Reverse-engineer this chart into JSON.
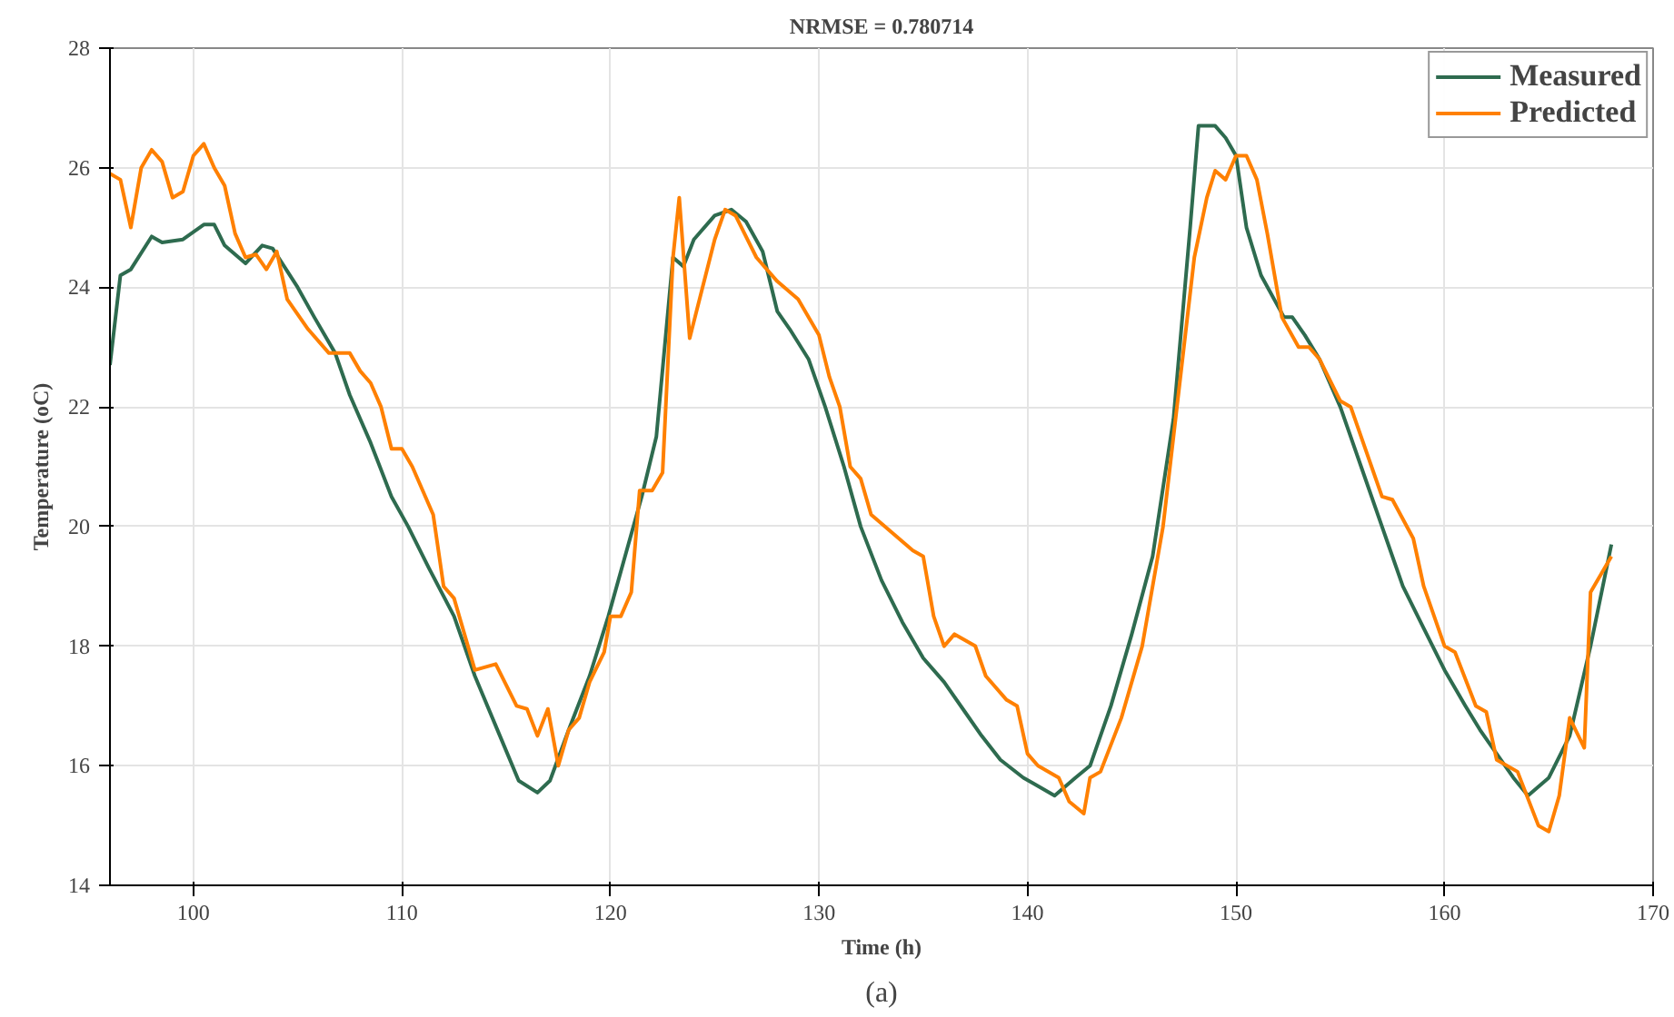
{
  "chart_data": {
    "type": "line",
    "title": "NRMSE = 0.780714",
    "xlabel": "Time (h)",
    "ylabel": "Temperature (oC)",
    "annotations": [
      "(a)"
    ],
    "xlim": [
      96,
      170
    ],
    "xticks": [
      100,
      110,
      120,
      130,
      140,
      150,
      160,
      170
    ],
    "ylim": [
      14,
      28
    ],
    "yticks": [
      14,
      16,
      18,
      20,
      22,
      24,
      26,
      28
    ],
    "grid": true,
    "legend": "top right",
    "marker": "none",
    "line_style": "solid",
    "series": [
      {
        "name": "Measured",
        "color": "#2e6b4f",
        "x": [
          96,
          96.5,
          97,
          98,
          98.5,
          99.5,
          100.5,
          101,
          101.5,
          102.5,
          103.3,
          103.8,
          105,
          105.8,
          106.8,
          107.5,
          108.5,
          109.5,
          110.3,
          111.3,
          112.5,
          113.5,
          114.7,
          115.6,
          116.5,
          117.1,
          118,
          119,
          119.9,
          120.7,
          121.5,
          122.2,
          123,
          123.5,
          124,
          125,
          125.8,
          126.5,
          127.3,
          128,
          128.6,
          129.5,
          130.3,
          131.2,
          132,
          133,
          134,
          135,
          136,
          137,
          137.8,
          138.7,
          139.8,
          140.3,
          141.3,
          142.3,
          143,
          144,
          145,
          146,
          147,
          147.8,
          148.2,
          149,
          149.5,
          150,
          150.5,
          151.2,
          152.3,
          152.7,
          153.3,
          154,
          155,
          156,
          157,
          158,
          159,
          160,
          161,
          161.7,
          162.3,
          163.3,
          164,
          165,
          166,
          167,
          168
        ],
        "values": [
          22.7,
          24.2,
          24.3,
          24.85,
          24.75,
          24.8,
          25.05,
          25.05,
          24.7,
          24.4,
          24.7,
          24.65,
          24.0,
          23.5,
          22.9,
          22.2,
          21.4,
          20.5,
          20.0,
          19.3,
          18.5,
          17.5,
          16.5,
          15.75,
          15.55,
          15.75,
          16.6,
          17.5,
          18.5,
          19.5,
          20.5,
          21.5,
          24.5,
          24.35,
          24.8,
          25.2,
          25.3,
          25.1,
          24.6,
          23.6,
          23.3,
          22.8,
          22.0,
          21.0,
          20.0,
          19.1,
          18.4,
          17.8,
          17.4,
          16.9,
          16.5,
          16.1,
          15.8,
          15.7,
          15.5,
          15.8,
          16.0,
          17.0,
          18.2,
          19.5,
          21.8,
          25.0,
          26.7,
          26.7,
          26.5,
          26.2,
          25.0,
          24.2,
          23.5,
          23.5,
          23.2,
          22.8,
          22.0,
          21.0,
          20.0,
          19.0,
          18.3,
          17.6,
          17.0,
          16.6,
          16.3,
          15.8,
          15.5,
          15.8,
          16.5,
          18.0,
          19.7
        ]
      },
      {
        "name": "Predicted",
        "color": "#ff8000",
        "x": [
          96,
          96.5,
          97,
          97.5,
          98,
          98.5,
          99,
          99.5,
          100,
          100.5,
          101,
          101.5,
          102,
          102.5,
          103,
          103.5,
          104,
          104.5,
          105.5,
          106.5,
          107.5,
          108,
          108.5,
          109,
          109.5,
          110,
          110.5,
          111.5,
          112,
          112.5,
          113.5,
          114.5,
          115.5,
          116,
          116.5,
          117,
          117.5,
          118,
          118.5,
          119,
          119.7,
          120,
          120.5,
          121,
          121.4,
          122,
          122.5,
          123,
          123.3,
          123.8,
          125,
          125.5,
          126,
          127,
          128,
          129,
          130,
          130.5,
          131,
          131.5,
          132,
          132.5,
          133.5,
          134.5,
          135,
          135.5,
          136,
          136.5,
          137.5,
          138,
          139,
          139.5,
          140,
          140.5,
          141.5,
          142,
          142.7,
          143,
          143.5,
          144.5,
          145.5,
          146.5,
          147.5,
          148,
          148.6,
          149,
          149.5,
          150,
          150.5,
          151,
          151.5,
          152.2,
          153,
          153.5,
          154,
          155,
          155.5,
          156.5,
          157,
          157.5,
          158.5,
          159,
          160,
          160.5,
          161.5,
          162,
          162.5,
          163.5,
          164.5,
          165,
          165.5,
          166,
          166.7,
          167,
          168
        ],
        "values": [
          25.9,
          25.8,
          25.0,
          26.0,
          26.3,
          26.1,
          25.5,
          25.6,
          26.2,
          26.4,
          26.0,
          25.7,
          24.9,
          24.5,
          24.55,
          24.3,
          24.6,
          23.8,
          23.3,
          22.9,
          22.9,
          22.6,
          22.4,
          22.0,
          21.3,
          21.3,
          21.0,
          20.2,
          19.0,
          18.8,
          17.6,
          17.7,
          17.0,
          16.95,
          16.5,
          16.95,
          16.0,
          16.6,
          16.8,
          17.4,
          17.9,
          18.5,
          18.5,
          18.9,
          20.6,
          20.6,
          20.9,
          24.5,
          25.5,
          23.15,
          24.8,
          25.3,
          25.2,
          24.5,
          24.1,
          23.8,
          23.2,
          22.5,
          22.0,
          21.0,
          20.8,
          20.2,
          19.9,
          19.6,
          19.5,
          18.5,
          18.0,
          18.2,
          18.0,
          17.5,
          17.1,
          17.0,
          16.2,
          16.0,
          15.8,
          15.4,
          15.2,
          15.8,
          15.9,
          16.8,
          18.0,
          20.0,
          23.0,
          24.5,
          25.5,
          25.95,
          25.8,
          26.2,
          26.2,
          25.8,
          24.9,
          23.5,
          23.0,
          23.0,
          22.8,
          22.1,
          22.0,
          21.0,
          20.5,
          20.45,
          19.8,
          19.0,
          18.0,
          17.9,
          17.0,
          16.9,
          16.1,
          15.9,
          15.0,
          14.9,
          15.5,
          16.8,
          16.3,
          18.9,
          19.5
        ]
      }
    ]
  }
}
